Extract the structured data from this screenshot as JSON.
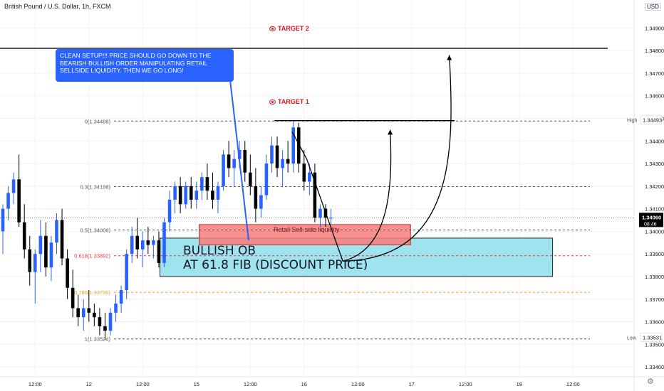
{
  "symbol_title": "British Pound / U.S. Dollar, 1h, FXCM",
  "currency_badge": "USD",
  "annotations": {
    "note_text": "CLEAN SETUP!!! PRICE SHOULD GO DOWN TO THE BEARISH BULLISH ORDER MANIPULATING RETAIL SELLSIDE LIQUIDITY. THEN WE GO LONG!",
    "ob_line1": "BULLISH OB",
    "ob_line2": "AT 61.8 FIB (DISCOUNT PRICE)",
    "liquidity_label": "Retail Sell-side liquidity",
    "target1": "TARGET 1",
    "target2": "TARGET 2"
  },
  "colors": {
    "up": "#2962ff",
    "down": "#000000",
    "ob_fill": "#9fe3ef",
    "liq_fill": "#f77d7d",
    "target": "#e0141e",
    "fib_618": "#e53935",
    "fib_786": "#f59d1a",
    "fib_default": "#555555"
  },
  "chart_data": {
    "type": "candlestick",
    "y_axis": {
      "min": 1.3335,
      "max": 1.3492,
      "ticks": [
        "1.34900",
        "1.34800",
        "1.34700",
        "1.34600",
        "1.34500",
        "1.34400",
        "1.34300",
        "1.34200",
        "1.34100",
        "1.34000",
        "1.33900",
        "1.33800",
        "1.33700",
        "1.33600",
        "1.33500",
        "1.33400"
      ],
      "tick_values": [
        1.349,
        1.348,
        1.347,
        1.346,
        1.345,
        1.344,
        1.343,
        1.342,
        1.341,
        1.34,
        1.339,
        1.338,
        1.337,
        1.336,
        1.335,
        1.334
      ]
    },
    "x_axis": {
      "labels": [
        "12:00",
        "12",
        "12:00",
        "15",
        "12:00",
        "16",
        "12:00",
        "17",
        "12:00",
        "18",
        "12:00"
      ],
      "label_index": [
        6,
        16,
        26,
        36,
        46,
        56,
        66,
        76,
        86,
        96,
        106
      ]
    },
    "price_markers": [
      {
        "label": "High",
        "value_text": "1.34493",
        "value": 1.34493
      },
      {
        "label": "",
        "value_text": "1.34060",
        "sub": "08:46",
        "value": 1.3406
      },
      {
        "label": "Low",
        "value_text": "1.33531",
        "value": 1.33531
      }
    ],
    "fib_levels": [
      {
        "label": "0(1.34488)",
        "value": 1.34488,
        "color": "#555555"
      },
      {
        "label": "0.3(1.34198)",
        "value": 1.34198,
        "color": "#555555"
      },
      {
        "label": "0.5(1.34006)",
        "value": 1.34006,
        "color": "#555555"
      },
      {
        "label": "0.618(1.33892)",
        "value": 1.33892,
        "color": "#e53935"
      },
      {
        "label": "0.786(1.33730)",
        "value": 1.3373,
        "color": "#f59d1a"
      },
      {
        "label": "1(1.33524)",
        "value": 1.33524,
        "color": "#555555"
      }
    ],
    "target_levels": [
      {
        "name": "TARGET 2",
        "value": 1.3481
      },
      {
        "name": "TARGET 1",
        "value": 1.3449
      }
    ],
    "zones": [
      {
        "name": "Retail Sell-side liquidity",
        "top": 1.3403,
        "bottom": 1.3394,
        "x_from": 36.5,
        "x_to": 75.8
      },
      {
        "name": "BULLISH OB",
        "top": 1.3397,
        "bottom": 1.338,
        "x_from": 29.2,
        "x_to": 102.2
      }
    ],
    "candles": [
      {
        "o": 1.34,
        "h": 1.3412,
        "l": 1.339,
        "c": 1.341
      },
      {
        "o": 1.341,
        "h": 1.342,
        "l": 1.3405,
        "c": 1.3417
      },
      {
        "o": 1.3417,
        "h": 1.3426,
        "l": 1.3412,
        "c": 1.3423
      },
      {
        "o": 1.3423,
        "h": 1.3434,
        "l": 1.3402,
        "c": 1.3404
      },
      {
        "o": 1.3404,
        "h": 1.3412,
        "l": 1.3388,
        "c": 1.3392
      },
      {
        "o": 1.3392,
        "h": 1.3398,
        "l": 1.3376,
        "c": 1.3382
      },
      {
        "o": 1.3382,
        "h": 1.3392,
        "l": 1.3368,
        "c": 1.339
      },
      {
        "o": 1.339,
        "h": 1.3405,
        "l": 1.3382,
        "c": 1.3398
      },
      {
        "o": 1.3398,
        "h": 1.3404,
        "l": 1.338,
        "c": 1.3384
      },
      {
        "o": 1.3384,
        "h": 1.3398,
        "l": 1.3378,
        "c": 1.3395
      },
      {
        "o": 1.3395,
        "h": 1.3408,
        "l": 1.339,
        "c": 1.3405
      },
      {
        "o": 1.3405,
        "h": 1.341,
        "l": 1.3385,
        "c": 1.3388
      },
      {
        "o": 1.3388,
        "h": 1.3392,
        "l": 1.337,
        "c": 1.3375
      },
      {
        "o": 1.3375,
        "h": 1.3383,
        "l": 1.3362,
        "c": 1.3366
      },
      {
        "o": 1.3366,
        "h": 1.3372,
        "l": 1.3358,
        "c": 1.3362
      },
      {
        "o": 1.3362,
        "h": 1.337,
        "l": 1.3356,
        "c": 1.3366
      },
      {
        "o": 1.3366,
        "h": 1.3374,
        "l": 1.336,
        "c": 1.3364
      },
      {
        "o": 1.3364,
        "h": 1.3368,
        "l": 1.3358,
        "c": 1.3362
      },
      {
        "o": 1.3362,
        "h": 1.3366,
        "l": 1.3354,
        "c": 1.3358
      },
      {
        "o": 1.3358,
        "h": 1.3364,
        "l": 1.3352,
        "c": 1.3356
      },
      {
        "o": 1.3356,
        "h": 1.3366,
        "l": 1.3354,
        "c": 1.3364
      },
      {
        "o": 1.3364,
        "h": 1.3372,
        "l": 1.336,
        "c": 1.3368
      },
      {
        "o": 1.3368,
        "h": 1.3376,
        "l": 1.3364,
        "c": 1.3374
      },
      {
        "o": 1.3374,
        "h": 1.3392,
        "l": 1.337,
        "c": 1.339
      },
      {
        "o": 1.339,
        "h": 1.3402,
        "l": 1.3386,
        "c": 1.3398
      },
      {
        "o": 1.3398,
        "h": 1.3406,
        "l": 1.3388,
        "c": 1.3392
      },
      {
        "o": 1.3392,
        "h": 1.34,
        "l": 1.3384,
        "c": 1.3396
      },
      {
        "o": 1.3396,
        "h": 1.3402,
        "l": 1.339,
        "c": 1.3394
      },
      {
        "o": 1.3394,
        "h": 1.3398,
        "l": 1.3388,
        "c": 1.3396
      },
      {
        "o": 1.3396,
        "h": 1.34,
        "l": 1.3384,
        "c": 1.3386
      },
      {
        "o": 1.3386,
        "h": 1.3406,
        "l": 1.3384,
        "c": 1.3404
      },
      {
        "o": 1.3404,
        "h": 1.3418,
        "l": 1.34,
        "c": 1.3414
      },
      {
        "o": 1.3414,
        "h": 1.3422,
        "l": 1.3408,
        "c": 1.342
      },
      {
        "o": 1.342,
        "h": 1.3424,
        "l": 1.3408,
        "c": 1.3412
      },
      {
        "o": 1.3412,
        "h": 1.3422,
        "l": 1.341,
        "c": 1.342
      },
      {
        "o": 1.342,
        "h": 1.3424,
        "l": 1.341,
        "c": 1.3414
      },
      {
        "o": 1.3414,
        "h": 1.3422,
        "l": 1.341,
        "c": 1.3418
      },
      {
        "o": 1.3418,
        "h": 1.3426,
        "l": 1.3414,
        "c": 1.3424
      },
      {
        "o": 1.3424,
        "h": 1.343,
        "l": 1.3414,
        "c": 1.3418
      },
      {
        "o": 1.3418,
        "h": 1.3426,
        "l": 1.341,
        "c": 1.3414
      },
      {
        "o": 1.3414,
        "h": 1.3422,
        "l": 1.3408,
        "c": 1.342
      },
      {
        "o": 1.342,
        "h": 1.3436,
        "l": 1.3418,
        "c": 1.3434
      },
      {
        "o": 1.3434,
        "h": 1.344,
        "l": 1.3424,
        "c": 1.3428
      },
      {
        "o": 1.3428,
        "h": 1.3436,
        "l": 1.342,
        "c": 1.3432
      },
      {
        "o": 1.3432,
        "h": 1.344,
        "l": 1.3428,
        "c": 1.3436
      },
      {
        "o": 1.3436,
        "h": 1.344,
        "l": 1.3422,
        "c": 1.3426
      },
      {
        "o": 1.3426,
        "h": 1.3434,
        "l": 1.3416,
        "c": 1.342
      },
      {
        "o": 1.342,
        "h": 1.3428,
        "l": 1.3404,
        "c": 1.341
      },
      {
        "o": 1.341,
        "h": 1.342,
        "l": 1.3406,
        "c": 1.3416
      },
      {
        "o": 1.3416,
        "h": 1.3434,
        "l": 1.3414,
        "c": 1.343
      },
      {
        "o": 1.343,
        "h": 1.3442,
        "l": 1.3426,
        "c": 1.3438
      },
      {
        "o": 1.3438,
        "h": 1.3442,
        "l": 1.3424,
        "c": 1.3428
      },
      {
        "o": 1.3428,
        "h": 1.3436,
        "l": 1.342,
        "c": 1.3432
      },
      {
        "o": 1.3432,
        "h": 1.344,
        "l": 1.3426,
        "c": 1.343
      },
      {
        "o": 1.343,
        "h": 1.3449,
        "l": 1.3426,
        "c": 1.3446
      },
      {
        "o": 1.3446,
        "h": 1.3448,
        "l": 1.3426,
        "c": 1.343
      },
      {
        "o": 1.343,
        "h": 1.3436,
        "l": 1.3418,
        "c": 1.3422
      },
      {
        "o": 1.3422,
        "h": 1.343,
        "l": 1.3416,
        "c": 1.3426
      },
      {
        "o": 1.3426,
        "h": 1.343,
        "l": 1.3404,
        "c": 1.3406
      },
      {
        "o": 1.3406,
        "h": 1.3412,
        "l": 1.3402,
        "c": 1.341
      },
      {
        "o": 1.341,
        "h": 1.3412,
        "l": 1.3402,
        "c": 1.3406
      },
      {
        "o": 1.3406,
        "h": 1.341,
        "l": 1.3403,
        "c": 1.3406
      }
    ]
  }
}
